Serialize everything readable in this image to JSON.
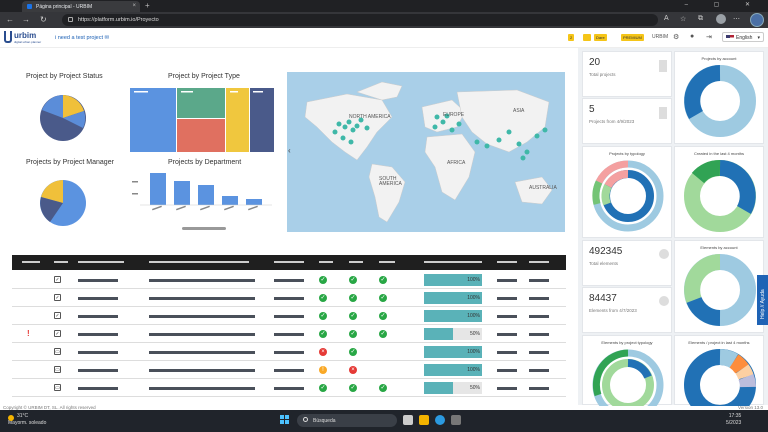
{
  "browser": {
    "tab_title": "Página principal - URBIM",
    "url": "https://platform.urbim.io/Proyecto"
  },
  "header": {
    "logo_text": "urbim",
    "logo_sub": "digital urban planner",
    "project_title": "i need a test project",
    "badges": [
      "2",
      "Dare",
      "PREMIUM"
    ],
    "brand": "URBIM",
    "language": "English"
  },
  "charts": {
    "status_title": "Project by Project Status",
    "type_title": "Project by Project Type",
    "manager_title": "Projects by Project Manager",
    "department_title": "Projects by Department"
  },
  "map": {
    "labels": [
      "NORTH AMERICA",
      "EUROPE",
      "ASIA",
      "AFRICA",
      "SOUTH AMERICA",
      "AUSTRALIA"
    ]
  },
  "kpis": {
    "total_projects": "20",
    "total_projects_label": "Total projects",
    "recent_projects": "5",
    "recent_projects_label": "Projects from 4/9/2023",
    "total_elements": "492345",
    "total_elements_label": "Total elements",
    "recent_elements": "84437",
    "recent_elements_label": "Elements from 4/7/2023"
  },
  "donuts": {
    "projects_by_account": "Projects by account",
    "projects_by_typology": "Projects by typology",
    "created_last_months": "Created in the last 4 months",
    "elements_by_account": "Elements by account",
    "elements_by_typology": "Elements by project typology",
    "elements_last_months": "Elements / project in last 4 months"
  },
  "help_label": "Help // Ayuda",
  "table": {
    "rows": [
      {
        "flag": false,
        "icon": "check",
        "s1": "ok",
        "s2": "ok",
        "s3": "ok",
        "pct": "100%",
        "fill": 1.0
      },
      {
        "flag": false,
        "icon": "check",
        "s1": "ok",
        "s2": "ok",
        "s3": "ok",
        "pct": "100%",
        "fill": 1.0
      },
      {
        "flag": false,
        "icon": "check",
        "s1": "ok",
        "s2": "ok",
        "s3": "ok",
        "pct": "100%",
        "fill": 1.0
      },
      {
        "flag": true,
        "icon": "check",
        "s1": "ok",
        "s2": "ok",
        "s3": "ok",
        "pct": "50%",
        "fill": 0.5
      },
      {
        "flag": false,
        "icon": "doc",
        "s1": "bad",
        "s2": "ok",
        "s3": "",
        "pct": "100%",
        "fill": 1.0
      },
      {
        "flag": false,
        "icon": "doc",
        "s1": "warn",
        "s2": "bad",
        "s3": "",
        "pct": "100%",
        "fill": 1.0
      },
      {
        "flag": false,
        "icon": "doc",
        "s1": "ok",
        "s2": "ok",
        "s3": "ok",
        "pct": "50%",
        "fill": 0.5
      }
    ]
  },
  "footer": {
    "copyright": "Copyright © URBIM DT, SL. All rights reserved",
    "version": "Version 13.0"
  },
  "taskbar": {
    "temp": "31°C",
    "weather": "Mayorm. soleado",
    "search": "Búsqueda",
    "time": "17:35",
    "date": "5/2023"
  },
  "colors": {
    "accent": "#1e63b5",
    "progress": "#5ab2b8",
    "ok": "#28a745",
    "bad": "#e53935",
    "warn": "#f9a825"
  }
}
